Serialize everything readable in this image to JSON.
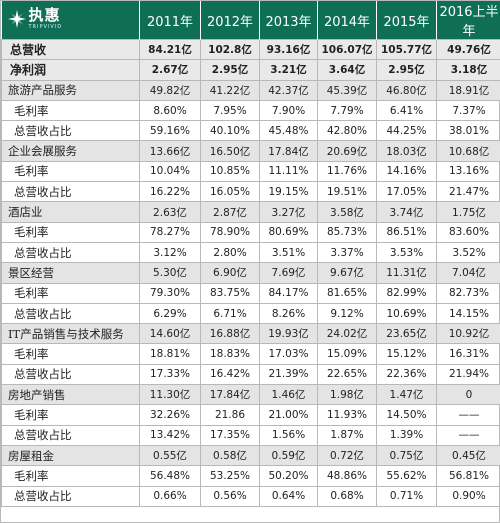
{
  "logo": {
    "main": "执惠",
    "sub": "TRIPVIVID"
  },
  "header": {
    "years": [
      "2011年",
      "2012年",
      "2013年",
      "2014年",
      "2015年",
      "2016上半年"
    ]
  },
  "rows": [
    {
      "type": "summary",
      "label": "总营收",
      "values": [
        "84.21亿",
        "102.8亿",
        "93.16亿",
        "106.07亿",
        "105.77亿",
        "49.76亿"
      ]
    },
    {
      "type": "summary",
      "label": "净利润",
      "values": [
        "2.67亿",
        "2.95亿",
        "3.21亿",
        "3.64亿",
        "2.95亿",
        "3.18亿"
      ]
    },
    {
      "type": "section",
      "label": "旅游产品服务",
      "values": [
        "49.82亿",
        "41.22亿",
        "42.37亿",
        "45.39亿",
        "46.80亿",
        "18.91亿"
      ]
    },
    {
      "type": "sub",
      "label": "毛利率",
      "values": [
        "8.60%",
        "7.95%",
        "7.90%",
        "7.79%",
        "6.41%",
        "7.37%"
      ]
    },
    {
      "type": "sub",
      "label": "总营收占比",
      "values": [
        "59.16%",
        "40.10%",
        "45.48%",
        "42.80%",
        "44.25%",
        "38.01%"
      ]
    },
    {
      "type": "section",
      "label": "企业会展服务",
      "values": [
        "13.66亿",
        "16.50亿",
        "17.84亿",
        "20.69亿",
        "18.03亿",
        "10.68亿"
      ]
    },
    {
      "type": "sub",
      "label": "毛利率",
      "values": [
        "10.04%",
        "10.85%",
        "11.11%",
        "11.76%",
        "14.16%",
        "13.16%"
      ]
    },
    {
      "type": "sub",
      "label": "总营收占比",
      "values": [
        "16.22%",
        "16.05%",
        "19.15%",
        "19.51%",
        "17.05%",
        "21.47%"
      ]
    },
    {
      "type": "section",
      "label": "酒店业",
      "values": [
        "2.63亿",
        "2.87亿",
        "3.27亿",
        "3.58亿",
        "3.74亿",
        "1.75亿"
      ]
    },
    {
      "type": "sub",
      "label": "毛利率",
      "values": [
        "78.27%",
        "78.90%",
        "80.69%",
        "85.73%",
        "86.51%",
        "83.60%"
      ]
    },
    {
      "type": "sub",
      "label": "总营收占比",
      "values": [
        "3.12%",
        "2.80%",
        "3.51%",
        "3.37%",
        "3.53%",
        "3.52%"
      ]
    },
    {
      "type": "section",
      "label": "景区经营",
      "values": [
        "5.30亿",
        "6.90亿",
        "7.69亿",
        "9.67亿",
        "11.31亿",
        "7.04亿"
      ]
    },
    {
      "type": "sub",
      "label": "毛利率",
      "values": [
        "79.30%",
        "83.75%",
        "84.17%",
        "81.65%",
        "82.99%",
        "82.73%"
      ]
    },
    {
      "type": "sub",
      "label": "总营收占比",
      "values": [
        "6.29%",
        "6.71%",
        "8.26%",
        "9.12%",
        "10.69%",
        "14.15%"
      ]
    },
    {
      "type": "section",
      "label": "IT产品销售与技术服务",
      "values": [
        "14.60亿",
        "16.88亿",
        "19.93亿",
        "24.02亿",
        "23.65亿",
        "10.92亿"
      ]
    },
    {
      "type": "sub",
      "label": "毛利率",
      "values": [
        "18.81%",
        "18.83%",
        "17.03%",
        "15.09%",
        "15.12%",
        "16.31%"
      ]
    },
    {
      "type": "sub",
      "label": "总营收占比",
      "values": [
        "17.33%",
        "16.42%",
        "21.39%",
        "22.65%",
        "22.36%",
        "21.94%"
      ]
    },
    {
      "type": "section",
      "label": "房地产销售",
      "values": [
        "11.30亿",
        "17.84亿",
        "1.46亿",
        "1.98亿",
        "1.47亿",
        "0"
      ]
    },
    {
      "type": "sub",
      "label": "毛利率",
      "values": [
        "32.26%",
        "21.86",
        "21.00%",
        "11.93%",
        "14.50%",
        "——"
      ]
    },
    {
      "type": "sub",
      "label": "总营收占比",
      "values": [
        "13.42%",
        "17.35%",
        "1.56%",
        "1.87%",
        "1.39%",
        "——"
      ]
    },
    {
      "type": "section",
      "label": "房屋租金",
      "values": [
        "0.55亿",
        "0.58亿",
        "0.59亿",
        "0.72亿",
        "0.75亿",
        "0.45亿"
      ]
    },
    {
      "type": "sub",
      "label": "毛利率",
      "values": [
        "56.48%",
        "53.25%",
        "50.20%",
        "48.86%",
        "55.62%",
        "56.81%"
      ]
    },
    {
      "type": "sub",
      "label": "总营收占比",
      "values": [
        "0.66%",
        "0.56%",
        "0.64%",
        "0.68%",
        "0.71%",
        "0.90%"
      ]
    }
  ],
  "colors": {
    "header_bg": "#0e6f56",
    "section_bg": "#e4e4e4",
    "summary_bg": "#e9e9e9"
  },
  "icons": {
    "logo_mark": "sparkle-star-icon"
  }
}
